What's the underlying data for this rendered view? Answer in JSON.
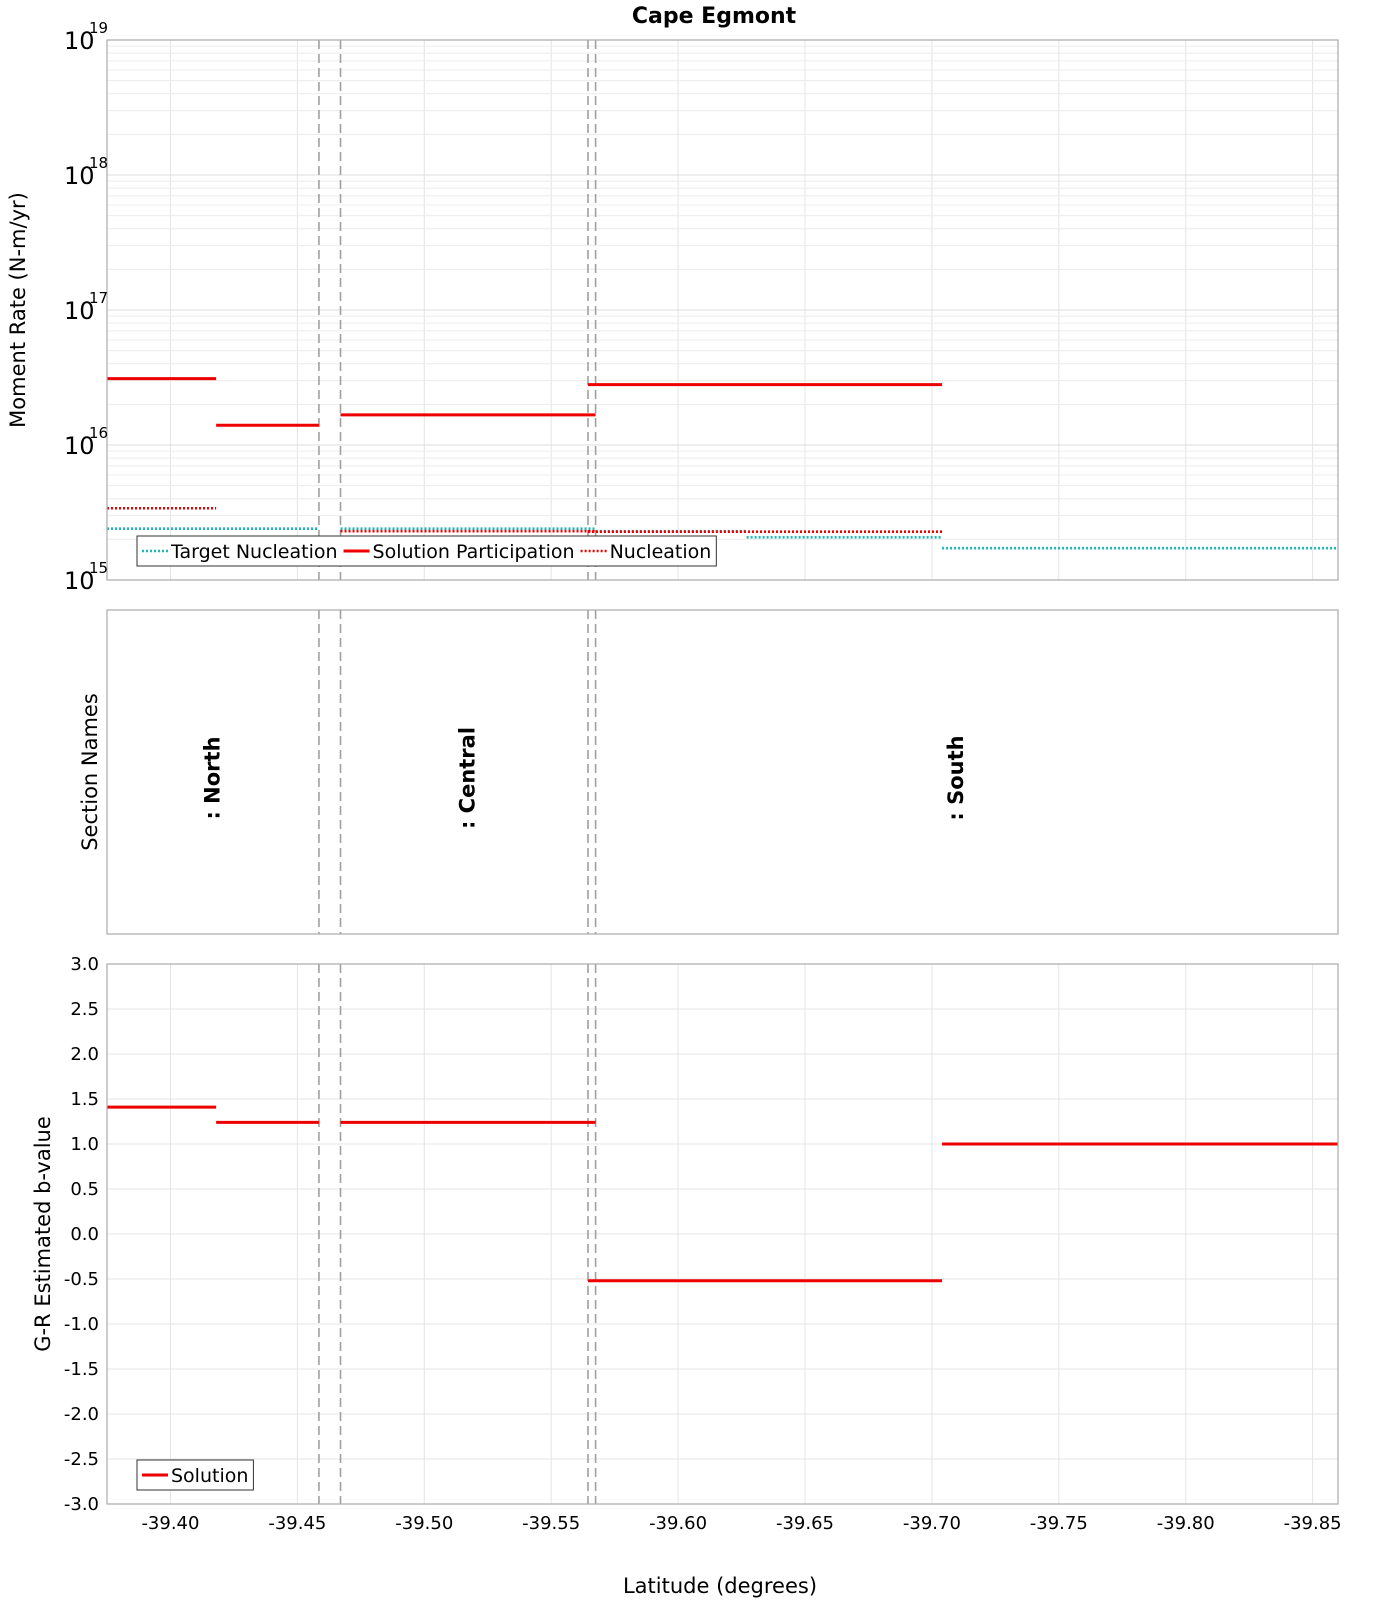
{
  "chart_data": {
    "type": "line",
    "title": "Cape Egmont",
    "xlabel": "Latitude (degrees)",
    "xlim": [
      -39.375,
      -39.86
    ],
    "x_ticks": [
      "-39.40",
      "-39.45",
      "-39.50",
      "-39.55",
      "-39.60",
      "-39.65",
      "-39.70",
      "-39.75",
      "-39.80",
      "-39.85"
    ],
    "section_boundaries": [
      -39.4585,
      -39.467,
      -39.5645,
      -39.5675
    ],
    "panels": [
      {
        "name": "moment-rate",
        "ylabel": "Moment Rate (N-m/yr)",
        "yscale": "log",
        "ylim": [
          1000000000000000.0,
          1e+19
        ],
        "y_ticks": [
          {
            "base": "10",
            "exp": "15"
          },
          {
            "base": "10",
            "exp": "16"
          },
          {
            "base": "10",
            "exp": "17"
          },
          {
            "base": "10",
            "exp": "18"
          },
          {
            "base": "10",
            "exp": "19"
          }
        ],
        "legend_position": "bottom-left",
        "series": [
          {
            "name": "Target Nucleation",
            "color": "#1fb8b8",
            "style": "dotted",
            "segments": [
              {
                "x": [
                  -39.375,
                  -39.4585
                ],
                "y": 2400000000000000.0
              },
              {
                "x": [
                  -39.467,
                  -39.5675
                ],
                "y": 2400000000000000.0
              },
              {
                "x": [
                  -39.5675,
                  -39.627
                ],
                "y": 2300000000000000.0
              },
              {
                "x": [
                  -39.627,
                  -39.704
                ],
                "y": 2070000000000000.0
              },
              {
                "x": [
                  -39.704,
                  -39.86
                ],
                "y": 1720000000000000.0
              }
            ]
          },
          {
            "name": "Solution Participation",
            "color": "#ee0000",
            "style": "solid",
            "segments": [
              {
                "x": [
                  -39.375,
                  -39.418
                ],
                "y": 3.1e+16
              },
              {
                "x": [
                  -39.418,
                  -39.4585
                ],
                "y": 1.4e+16
              },
              {
                "x": [
                  -39.467,
                  -39.5675
                ],
                "y": 1.67e+16
              },
              {
                "x": [
                  -39.5645,
                  -39.704
                ],
                "y": 2.8e+16
              }
            ]
          },
          {
            "name": "Nucleation",
            "color": "#ee0000",
            "style": "dotted",
            "segments": [
              {
                "x": [
                  -39.375,
                  -39.418
                ],
                "y": 3400000000000000.0
              },
              {
                "x": [
                  -39.418,
                  -39.4585
                ],
                "y": 1900000000000000.0
              },
              {
                "x": [
                  -39.467,
                  -39.5675
                ],
                "y": 2300000000000000.0
              },
              {
                "x": [
                  -39.5645,
                  -39.704
                ],
                "y": 2280000000000000.0
              }
            ]
          }
        ]
      },
      {
        "name": "section-names",
        "ylabel": "Section Names",
        "labels": [
          {
            "text": ": North",
            "x": -39.4165
          },
          {
            "text": ": Central",
            "x": -39.517
          },
          {
            "text": ": South",
            "x": -39.7095
          }
        ]
      },
      {
        "name": "b-value",
        "ylabel": "G-R Estimated b-value",
        "ylim": [
          -3.0,
          3.0
        ],
        "y_ticks": [
          "-3.0",
          "-2.5",
          "-2.0",
          "-1.5",
          "-1.0",
          "-0.5",
          "0.0",
          "0.5",
          "1.0",
          "1.5",
          "2.0",
          "2.5",
          "3.0"
        ],
        "legend_position": "bottom-left",
        "series": [
          {
            "name": "Solution",
            "color": "#ee0000",
            "style": "solid",
            "segments": [
              {
                "x": [
                  -39.375,
                  -39.418
                ],
                "y": 1.41
              },
              {
                "x": [
                  -39.418,
                  -39.4585
                ],
                "y": 1.24
              },
              {
                "x": [
                  -39.467,
                  -39.5675
                ],
                "y": 1.24
              },
              {
                "x": [
                  -39.5645,
                  -39.704
                ],
                "y": -0.52
              },
              {
                "x": [
                  -39.704,
                  -39.86
                ],
                "y": 1.0
              }
            ]
          }
        ]
      }
    ]
  }
}
